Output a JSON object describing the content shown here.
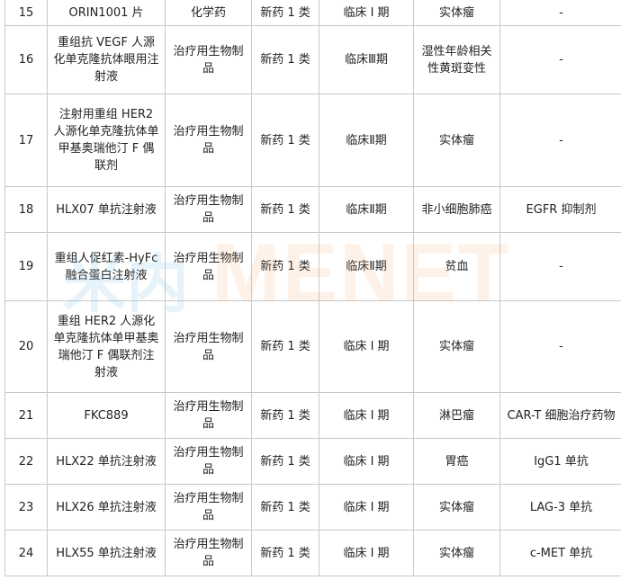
{
  "watermark": {
    "logo": "米内",
    "text": "MENET"
  },
  "rows": [
    [
      "15",
      "ORIN1001 片",
      "化学药",
      "新药 1 类",
      "临床 Ⅰ 期",
      "实体瘤",
      "-"
    ],
    [
      "16",
      "重组抗 VEGF 人源化单克隆抗体眼用注射液",
      "治疗用生物制品",
      "新药 1 类",
      "临床Ⅲ期",
      "湿性年龄相关性黄斑变性",
      "-"
    ],
    [
      "17",
      "注射用重组 HER2 人源化单克隆抗体单甲基奥瑞他汀 F 偶联剂",
      "治疗用生物制品",
      "新药 1 类",
      "临床Ⅱ期",
      "实体瘤",
      "-"
    ],
    [
      "18",
      "HLX07 单抗注射液",
      "治疗用生物制品",
      "新药 1 类",
      "临床Ⅱ期",
      "非小细胞肺癌",
      "EGFR 抑制剂"
    ],
    [
      "19",
      "重组人促红素-HyFc 融合蛋白注射液",
      "治疗用生物制品",
      "新药 1 类",
      "临床Ⅱ期",
      "贫血",
      "-"
    ],
    [
      "20",
      "重组 HER2 人源化单克隆抗体单甲基奥瑞他汀 F 偶联剂注射液",
      "治疗用生物制品",
      "新药 1 类",
      "临床 Ⅰ 期",
      "实体瘤",
      "-"
    ],
    [
      "21",
      "FKC889",
      "治疗用生物制品",
      "新药 1 类",
      "临床 Ⅰ 期",
      "淋巴瘤",
      "CAR-T 细胞治疗药物"
    ],
    [
      "22",
      "HLX22 单抗注射液",
      "治疗用生物制品",
      "新药 1 类",
      "临床 Ⅰ 期",
      "胃癌",
      "IgG1 单抗"
    ],
    [
      "23",
      "HLX26 单抗注射液",
      "治疗用生物制品",
      "新药 1 类",
      "临床 Ⅰ 期",
      "实体瘤",
      "LAG-3 单抗"
    ],
    [
      "24",
      "HLX55 单抗注射液",
      "治疗用生物制品",
      "新药 1 类",
      "临床 Ⅰ 期",
      "实体瘤",
      "c-MET 单抗"
    ]
  ]
}
